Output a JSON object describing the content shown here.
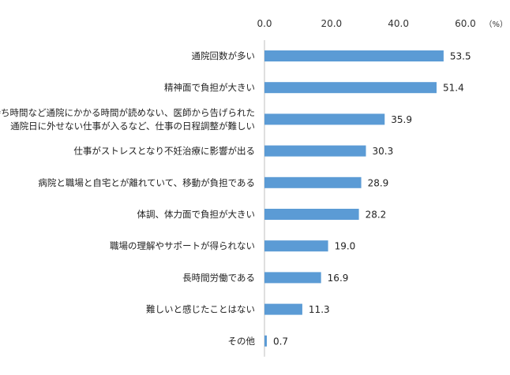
{
  "chart_data": {
    "type": "bar",
    "orientation": "horizontal",
    "categories": [
      [
        "通院回数が多い"
      ],
      [
        "精神面で負担が大きい"
      ],
      [
        "待ち時間など通院にかかる時間が読めない、医師から告げられた",
        "通院日に外せない仕事が入るなど、仕事の日程調整が難しい"
      ],
      [
        "仕事がストレスとなり不妊治療に影響が出る"
      ],
      [
        "病院と職場と自宅とが離れていて、移動が負担である"
      ],
      [
        "体調、体力面で負担が大きい"
      ],
      [
        "職場の理解やサポートが得られない"
      ],
      [
        "長時間労働である"
      ],
      [
        "難しいと感じたことはない"
      ],
      [
        "その他"
      ]
    ],
    "values": [
      53.5,
      51.4,
      35.9,
      30.3,
      28.9,
      28.2,
      19.0,
      16.9,
      11.3,
      0.7
    ],
    "value_labels": [
      "53.5",
      "51.4",
      "35.9",
      "30.3",
      "28.9",
      "28.2",
      "19.0",
      "16.9",
      "11.3",
      "0.7"
    ],
    "xlim": [
      0,
      60
    ],
    "ticks": [
      0,
      20,
      40,
      60
    ],
    "tick_labels": [
      "0.0",
      "20.0",
      "40.0",
      "60.0"
    ],
    "unit": "（%）",
    "axis_position": "top",
    "grid": false,
    "bar_color": "#5B9BD5"
  }
}
